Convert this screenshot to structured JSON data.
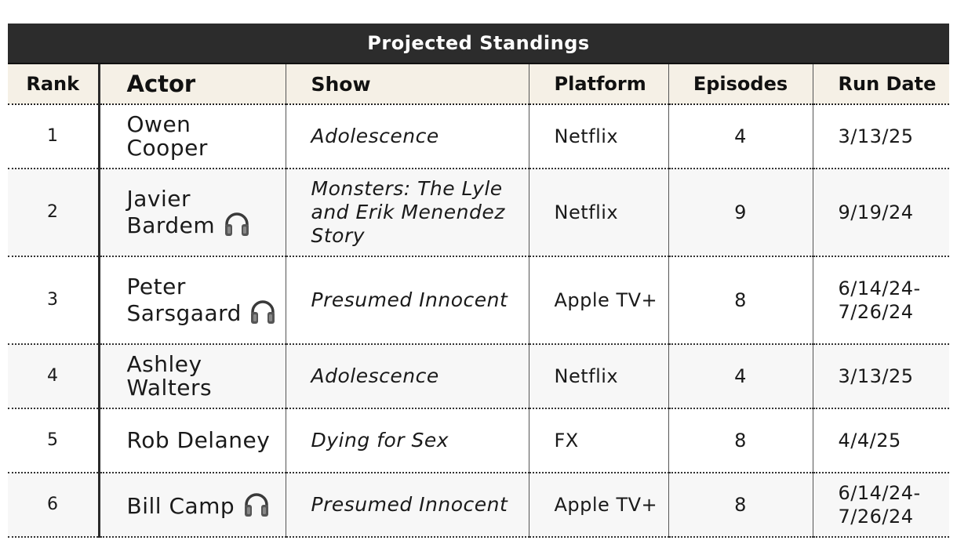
{
  "title": "Projected Standings",
  "columns": {
    "rank": "Rank",
    "actor": "Actor",
    "show": "Show",
    "platform": "Platform",
    "episodes": "Episodes",
    "run_date": "Run Date"
  },
  "colors": {
    "title_bg": "#2c2c2c",
    "header_bg": "#f5f0e6",
    "row_alt_bg": "#f7f7f7"
  },
  "rows": [
    {
      "rank": "1",
      "actor": "Owen Cooper",
      "headphones": false,
      "show": "Adolescence",
      "platform": "Netflix",
      "episodes": "4",
      "run_date": "3/13/25"
    },
    {
      "rank": "2",
      "actor": "Javier Bardem",
      "headphones": true,
      "show": "Monsters: The Lyle and Erik Menendez Story",
      "platform": "Netflix",
      "episodes": "9",
      "run_date": "9/19/24"
    },
    {
      "rank": "3",
      "actor": "Peter Sarsgaard",
      "headphones": true,
      "show": "Presumed Innocent",
      "platform": "Apple TV+",
      "episodes": "8",
      "run_date": "6/14/24-7/26/24"
    },
    {
      "rank": "4",
      "actor": "Ashley Walters",
      "headphones": false,
      "show": "Adolescence",
      "platform": "Netflix",
      "episodes": "4",
      "run_date": "3/13/25"
    },
    {
      "rank": "5",
      "actor": "Rob Delaney",
      "headphones": false,
      "show": "Dying for Sex",
      "platform": "FX",
      "episodes": "8",
      "run_date": "4/4/25"
    },
    {
      "rank": "6",
      "actor": "Bill Camp",
      "headphones": true,
      "show": "Presumed Innocent",
      "platform": "Apple TV+",
      "episodes": "8",
      "run_date": "6/14/24-7/26/24"
    }
  ]
}
